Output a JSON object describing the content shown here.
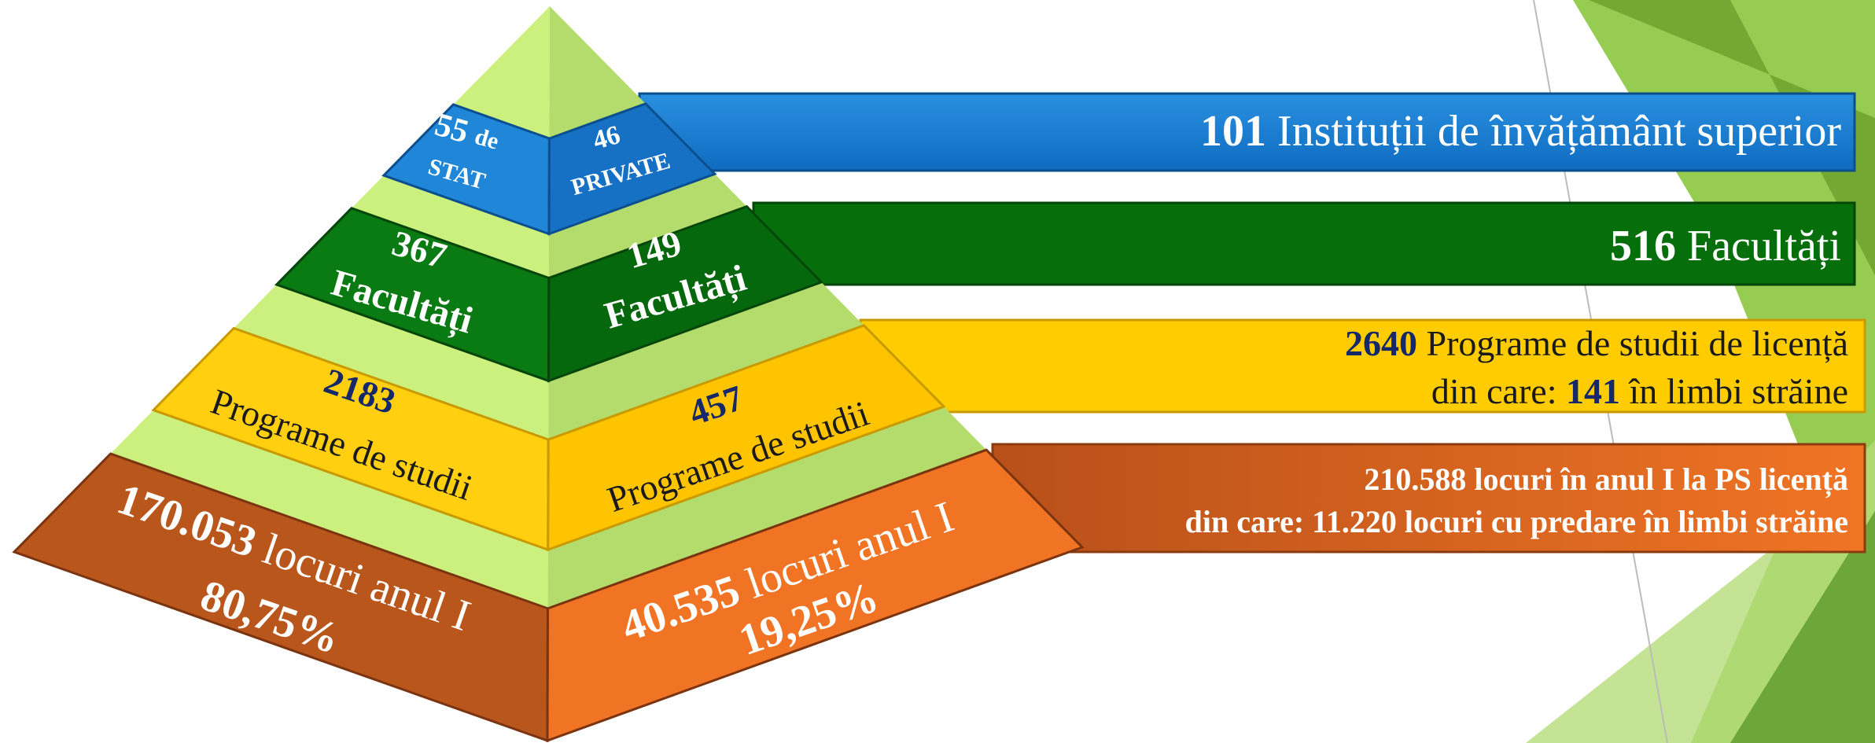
{
  "tiers": [
    {
      "left": {
        "number": "55",
        "unit": "de",
        "label": "STAT"
      },
      "right": {
        "number": "46",
        "label": "PRIVATE"
      },
      "summary": {
        "number": "101",
        "label": "Instituții de învățământ superior"
      }
    },
    {
      "left": {
        "number": "367",
        "label": "Facultăți"
      },
      "right": {
        "number": "149",
        "label": "Facultăți"
      },
      "summary": {
        "number": "516",
        "label": "Facultăți"
      }
    },
    {
      "left": {
        "number": "2183",
        "label": "Programe de studii"
      },
      "right": {
        "number": "457",
        "label": "Programe de studii"
      },
      "summary": {
        "number": "2640",
        "label": "Programe de studii de licență",
        "line2_prefix": "din care:",
        "line2_number": "141",
        "line2_suffix": "în limbi străine"
      }
    },
    {
      "left": {
        "number": "170.053",
        "label": "locuri anul I",
        "share": "80,75%"
      },
      "right": {
        "number": "40.535",
        "label": "locuri anul I",
        "share": "19,25%"
      },
      "summary": {
        "line1": "210.588 locuri în anul I la PS licență",
        "line2": "din care: 11.220 locuri cu predare în limbi străine"
      }
    }
  ]
}
